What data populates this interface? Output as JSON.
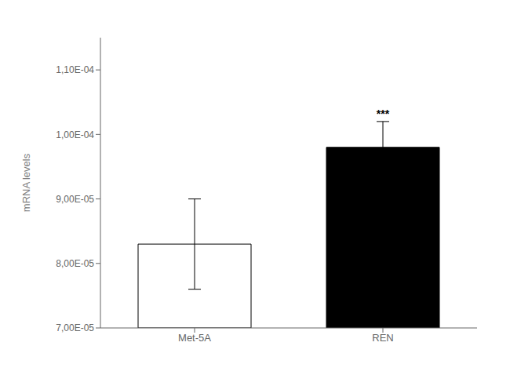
{
  "chart_data": {
    "type": "bar",
    "categories": [
      "Met-5A",
      "REN"
    ],
    "values": [
      8.3e-05,
      9.8e-05
    ],
    "errors": [
      7e-06,
      4e-06
    ],
    "colors": [
      "white",
      "black"
    ],
    "y_label": "mRNA levels",
    "ylim": [
      7e-05,
      0.000115
    ],
    "yticks": [
      {
        "value": 7e-05,
        "label": "7,00E-05"
      },
      {
        "value": 8e-05,
        "label": "8,00E-05"
      },
      {
        "value": 9e-05,
        "label": "9,00E-05"
      },
      {
        "value": 0.0001,
        "label": "1,00E-04"
      },
      {
        "value": 0.00011,
        "label": "1,10E-04"
      }
    ],
    "annotations": [
      {
        "text": "***",
        "x": "REN"
      }
    ],
    "grid": false
  }
}
